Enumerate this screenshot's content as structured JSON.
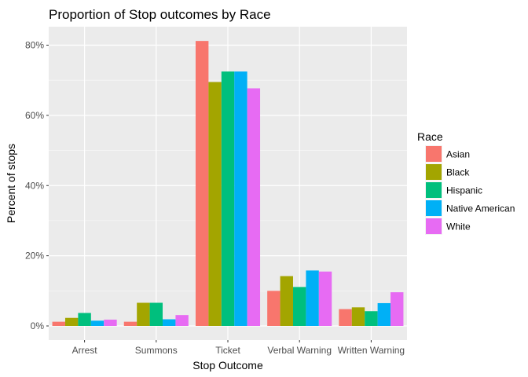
{
  "chart_data": {
    "type": "bar",
    "title": "Proportion of Stop outcomes by Race",
    "xlabel": "Stop Outcome",
    "ylabel": "Percent of stops",
    "categories": [
      "Arrest",
      "Summons",
      "Ticket",
      "Verbal Warning",
      "Written Warning"
    ],
    "y_ticks": [
      0,
      20,
      40,
      60,
      80
    ],
    "y_tick_labels": [
      "0%",
      "20%",
      "40%",
      "60%",
      "80%"
    ],
    "ylim": [
      0,
      85
    ],
    "grid": true,
    "legend": {
      "title": "Race",
      "position": "right"
    },
    "series": [
      {
        "name": "Asian",
        "color": "#F8766D",
        "values": [
          1.2,
          1.2,
          81.2,
          10.0,
          4.8
        ]
      },
      {
        "name": "Black",
        "color": "#A3A500",
        "values": [
          2.3,
          6.6,
          69.5,
          14.2,
          5.3
        ]
      },
      {
        "name": "Hispanic",
        "color": "#00BF7D",
        "values": [
          3.7,
          6.6,
          72.5,
          11.1,
          4.2
        ]
      },
      {
        "name": "Native American",
        "color": "#00B0F6",
        "values": [
          1.5,
          1.9,
          72.5,
          15.8,
          6.5
        ]
      },
      {
        "name": "White",
        "color": "#E76BF3",
        "values": [
          1.8,
          3.1,
          67.7,
          15.5,
          9.6
        ]
      }
    ]
  }
}
